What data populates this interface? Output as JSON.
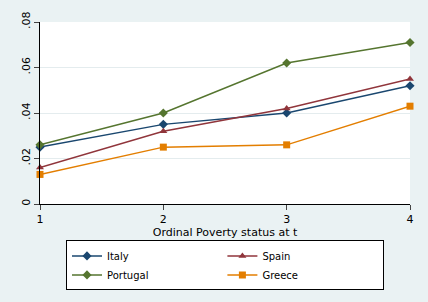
{
  "chart_data": {
    "type": "line",
    "x_label": "Ordinal Poverty status at t",
    "x": [
      1,
      2,
      3,
      4
    ],
    "series": [
      {
        "name": "Italy",
        "color": "#1a476f",
        "marker": "diamond",
        "values": [
          0.025,
          0.035,
          0.04,
          0.052
        ]
      },
      {
        "name": "Spain",
        "color": "#90353b",
        "marker": "triangle-up",
        "values": [
          0.016,
          0.032,
          0.042,
          0.055
        ]
      },
      {
        "name": "Portugal",
        "color": "#55752f",
        "marker": "diamond",
        "values": [
          0.026,
          0.04,
          0.062,
          0.071
        ]
      },
      {
        "name": "Greece",
        "color": "#e37e00",
        "marker": "square",
        "values": [
          0.013,
          0.025,
          0.026,
          0.043
        ]
      }
    ],
    "xlim": [
      1,
      4
    ],
    "xticks": [
      1,
      2,
      3,
      4
    ],
    "ylim": [
      0,
      0.08
    ],
    "yticks": [
      0,
      {
        "value": 0.02,
        "label": ".02"
      },
      {
        "value": 0.04,
        "label": ".04"
      },
      {
        "value": 0.06,
        "label": ".06"
      },
      {
        "value": 0.08,
        "label": ".08"
      }
    ],
    "grid": true,
    "legend": "bottom"
  }
}
